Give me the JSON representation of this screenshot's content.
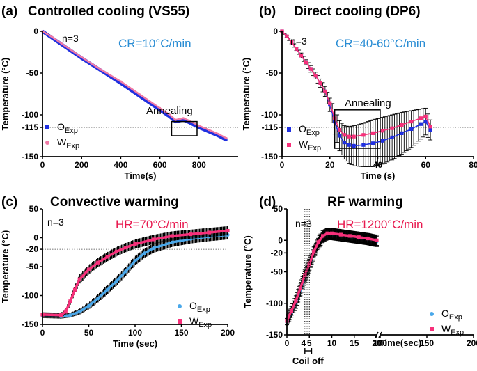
{
  "chart_data": [
    {
      "type": "line",
      "panel_label": "(a)",
      "title": "Controlled cooling (VS55)",
      "xlabel": "Time(s)",
      "ylabel": "Temperature (°C)",
      "xlim": [
        0,
        1000
      ],
      "ylim": [
        -150,
        0
      ],
      "xticks": [
        "0",
        "200",
        "400",
        "600",
        "800"
      ],
      "xtick_values": [
        0,
        200,
        400,
        600,
        800
      ],
      "yticks": [
        "0",
        "-50",
        "-100",
        "-115",
        "-150"
      ],
      "ytick_values": [
        0,
        -50,
        -100,
        -115,
        -150
      ],
      "ref_line": -115,
      "n_text": "n=3",
      "rate_text": "CR=10°C/min",
      "rate_color": "#2a8dd4",
      "annotation": "Annealing",
      "annotation_box": {
        "x": [
          660,
          790
        ],
        "y": [
          -108,
          -125
        ]
      },
      "legend": [
        {
          "label": "O",
          "sub": "Exp",
          "color": "#1f2fe0",
          "marker": "square"
        },
        {
          "label": "W",
          "sub": "Exp",
          "color": "#f07aa6",
          "marker": "circle"
        }
      ],
      "series": [
        {
          "name": "OExp",
          "color": "#1f2fe0",
          "x": [
            0,
            50,
            100,
            200,
            300,
            400,
            500,
            600,
            650,
            680,
            700,
            720,
            750,
            800,
            850,
            900,
            940
          ],
          "y": [
            0,
            -8,
            -16,
            -32,
            -47,
            -62,
            -78,
            -94,
            -102,
            -108,
            -107,
            -106,
            -109,
            -115,
            -120,
            -125,
            -130
          ]
        },
        {
          "name": "WExp",
          "color": "#f07aa6",
          "x": [
            0,
            50,
            100,
            200,
            300,
            400,
            500,
            600,
            650,
            680,
            700,
            720,
            750,
            800,
            850,
            900,
            940
          ],
          "y": [
            0,
            -7,
            -15,
            -31,
            -46,
            -60,
            -76,
            -92,
            -100,
            -106,
            -105,
            -104,
            -107,
            -113,
            -118,
            -123,
            -128
          ]
        }
      ]
    },
    {
      "type": "line",
      "panel_label": "(b)",
      "title": "Direct cooling (DP6)",
      "xlabel": "Time (s)",
      "ylabel": "Temperature (°C)",
      "xlim": [
        0,
        80
      ],
      "ylim": [
        -150,
        0
      ],
      "xticks": [
        "0",
        "20",
        "40",
        "60",
        "80"
      ],
      "xtick_values": [
        0,
        20,
        40,
        60,
        80
      ],
      "yticks": [
        "0",
        "-50",
        "-100",
        "-115",
        "-150"
      ],
      "ytick_values": [
        0,
        -50,
        -100,
        -115,
        -150
      ],
      "ref_line": -115,
      "n_text": "n=3",
      "rate_text": "CR=40-60°C/min",
      "rate_color": "#2a8dd4",
      "annotation": "Annealing",
      "annotation_box": {
        "x": [
          22,
          41
        ],
        "y": [
          -94,
          -140
        ]
      },
      "legend": [
        {
          "label": "O",
          "sub": "Exp",
          "color": "#1f2fe0",
          "marker": "square"
        },
        {
          "label": "W",
          "sub": "Exp",
          "color": "#f7307a",
          "marker": "square"
        }
      ],
      "series": [
        {
          "name": "OExp",
          "color": "#1f2fe0",
          "x": [
            0,
            2,
            4,
            6,
            8,
            10,
            12,
            14,
            16,
            18,
            20,
            22,
            24,
            26,
            28,
            30,
            34,
            38,
            42,
            46,
            50,
            54,
            58,
            60,
            62
          ],
          "y": [
            0,
            -6,
            -13,
            -21,
            -29,
            -37,
            -45,
            -53,
            -62,
            -72,
            -88,
            -108,
            -125,
            -133,
            -136,
            -137,
            -136,
            -134,
            -131,
            -127,
            -122,
            -117,
            -111,
            -108,
            -118
          ],
          "err": [
            0,
            1,
            2,
            2,
            3,
            3,
            4,
            4,
            5,
            6,
            8,
            15,
            18,
            20,
            22,
            24,
            26,
            28,
            28,
            27,
            25,
            22,
            18,
            16,
            12
          ]
        },
        {
          "name": "WExp",
          "color": "#f7307a",
          "x": [
            0,
            2,
            4,
            6,
            8,
            10,
            12,
            14,
            16,
            18,
            20,
            22,
            24,
            26,
            28,
            30,
            34,
            38,
            42,
            46,
            50,
            54,
            58,
            60,
            62
          ],
          "y": [
            0,
            -6,
            -13,
            -21,
            -29,
            -37,
            -45,
            -53,
            -62,
            -72,
            -86,
            -104,
            -118,
            -124,
            -126,
            -126,
            -124,
            -122,
            -119,
            -116,
            -112,
            -108,
            -104,
            -102,
            -114
          ],
          "err": [
            0,
            1,
            2,
            2,
            3,
            3,
            4,
            4,
            5,
            6,
            8,
            15,
            18,
            20,
            22,
            24,
            26,
            28,
            28,
            27,
            25,
            22,
            18,
            16,
            12
          ]
        }
      ]
    },
    {
      "type": "line",
      "panel_label": "(c)",
      "title": "Convective warming",
      "xlabel": "Time (sec)",
      "ylabel": "Temperature (°C)",
      "xlim": [
        0,
        200
      ],
      "ylim": [
        -150,
        50
      ],
      "xticks": [
        "0",
        "50",
        "100",
        "150",
        "200"
      ],
      "xtick_values": [
        0,
        50,
        100,
        150,
        200
      ],
      "yticks": [
        "50",
        "0",
        "-20",
        "-50",
        "-100",
        "-150"
      ],
      "ytick_values": [
        50,
        0,
        -20,
        -50,
        -100,
        -150
      ],
      "ref_line": -20,
      "n_text": "n=3",
      "rate_text": "HR=70°C/min",
      "rate_color": "#e8194f",
      "legend": [
        {
          "label": "O",
          "sub": "Exp",
          "color": "#4aa8ea",
          "marker": "circle"
        },
        {
          "label": "W",
          "sub": "Exp",
          "color": "#f7307a",
          "marker": "square"
        }
      ],
      "series": [
        {
          "name": "OExp",
          "color": "#4aa8ea",
          "x": [
            0,
            20,
            30,
            40,
            50,
            60,
            70,
            80,
            90,
            100,
            110,
            120,
            140,
            160,
            180,
            200
          ],
          "y": [
            -135,
            -136,
            -134,
            -128,
            -118,
            -105,
            -90,
            -75,
            -58,
            -40,
            -27,
            -18,
            -8,
            -2,
            2,
            5
          ],
          "err": [
            4,
            4,
            4,
            5,
            6,
            7,
            8,
            8,
            8,
            8,
            8,
            8,
            8,
            8,
            8,
            8
          ]
        },
        {
          "name": "WExp",
          "color": "#f7307a",
          "x": [
            0,
            20,
            25,
            30,
            35,
            40,
            50,
            60,
            70,
            80,
            90,
            100,
            120,
            140,
            160,
            180,
            200
          ],
          "y": [
            -133,
            -134,
            -128,
            -110,
            -90,
            -72,
            -55,
            -43,
            -33,
            -24,
            -17,
            -11,
            -3,
            3,
            6,
            9,
            12
          ],
          "err": [
            4,
            4,
            5,
            6,
            7,
            8,
            8,
            8,
            8,
            8,
            8,
            8,
            8,
            8,
            8,
            8,
            8
          ]
        }
      ]
    },
    {
      "type": "line",
      "panel_label": "(d)",
      "title": "RF warming",
      "xlabel": "Time(sec)",
      "ylabel": "Temperature (°C)",
      "xlim": [
        0,
        200
      ],
      "axis_break": [
        20,
        100
      ],
      "ylim": [
        -150,
        50
      ],
      "xticks": [
        "0",
        "5",
        "10",
        "15",
        "20",
        "100",
        "150",
        "200"
      ],
      "xtick_values": [
        0,
        5,
        10,
        15,
        20,
        100,
        150,
        200
      ],
      "extra_ticks": [
        "4"
      ],
      "extra_tick_values": [
        4
      ],
      "yticks": [
        "50",
        "0",
        "-20",
        "-50",
        "-100",
        "-150"
      ],
      "ytick_values": [
        50,
        0,
        -20,
        -50,
        -100,
        -150
      ],
      "ref_line": -20,
      "dotted_verticals": [
        4,
        4.5,
        5
      ],
      "coil_off_text": "Coil off",
      "n_text": "n=3",
      "rate_text": "HR=1200°C/min",
      "rate_color": "#e8194f",
      "legend": [
        {
          "label": "O",
          "sub": "Exp",
          "color": "#4aa8ea",
          "marker": "circle"
        },
        {
          "label": "W",
          "sub": "Exp",
          "color": "#f7307a",
          "marker": "square"
        }
      ],
      "series": [
        {
          "name": "OExp",
          "color": "#4aa8ea",
          "x": [
            0,
            1,
            2,
            3,
            4,
            5,
            6,
            7,
            8,
            9,
            10,
            12,
            14,
            16,
            18,
            20
          ],
          "y": [
            -130,
            -115,
            -100,
            -80,
            -58,
            -40,
            -20,
            -5,
            5,
            9,
            9,
            7,
            5,
            3,
            1,
            -2
          ],
          "err": [
            6,
            7,
            8,
            8,
            8,
            8,
            8,
            8,
            8,
            8,
            8,
            8,
            8,
            8,
            8,
            8
          ]
        },
        {
          "name": "WExp",
          "color": "#f7307a",
          "x": [
            0,
            1,
            2,
            3,
            4,
            5,
            6,
            7,
            8,
            9,
            10,
            12,
            14,
            16,
            18,
            20
          ],
          "y": [
            -128,
            -112,
            -96,
            -76,
            -55,
            -38,
            -18,
            -3,
            7,
            11,
            11,
            9,
            7,
            5,
            3,
            0
          ],
          "err": [
            6,
            7,
            8,
            8,
            8,
            8,
            8,
            8,
            8,
            8,
            8,
            8,
            8,
            8,
            8,
            8
          ]
        }
      ]
    }
  ]
}
